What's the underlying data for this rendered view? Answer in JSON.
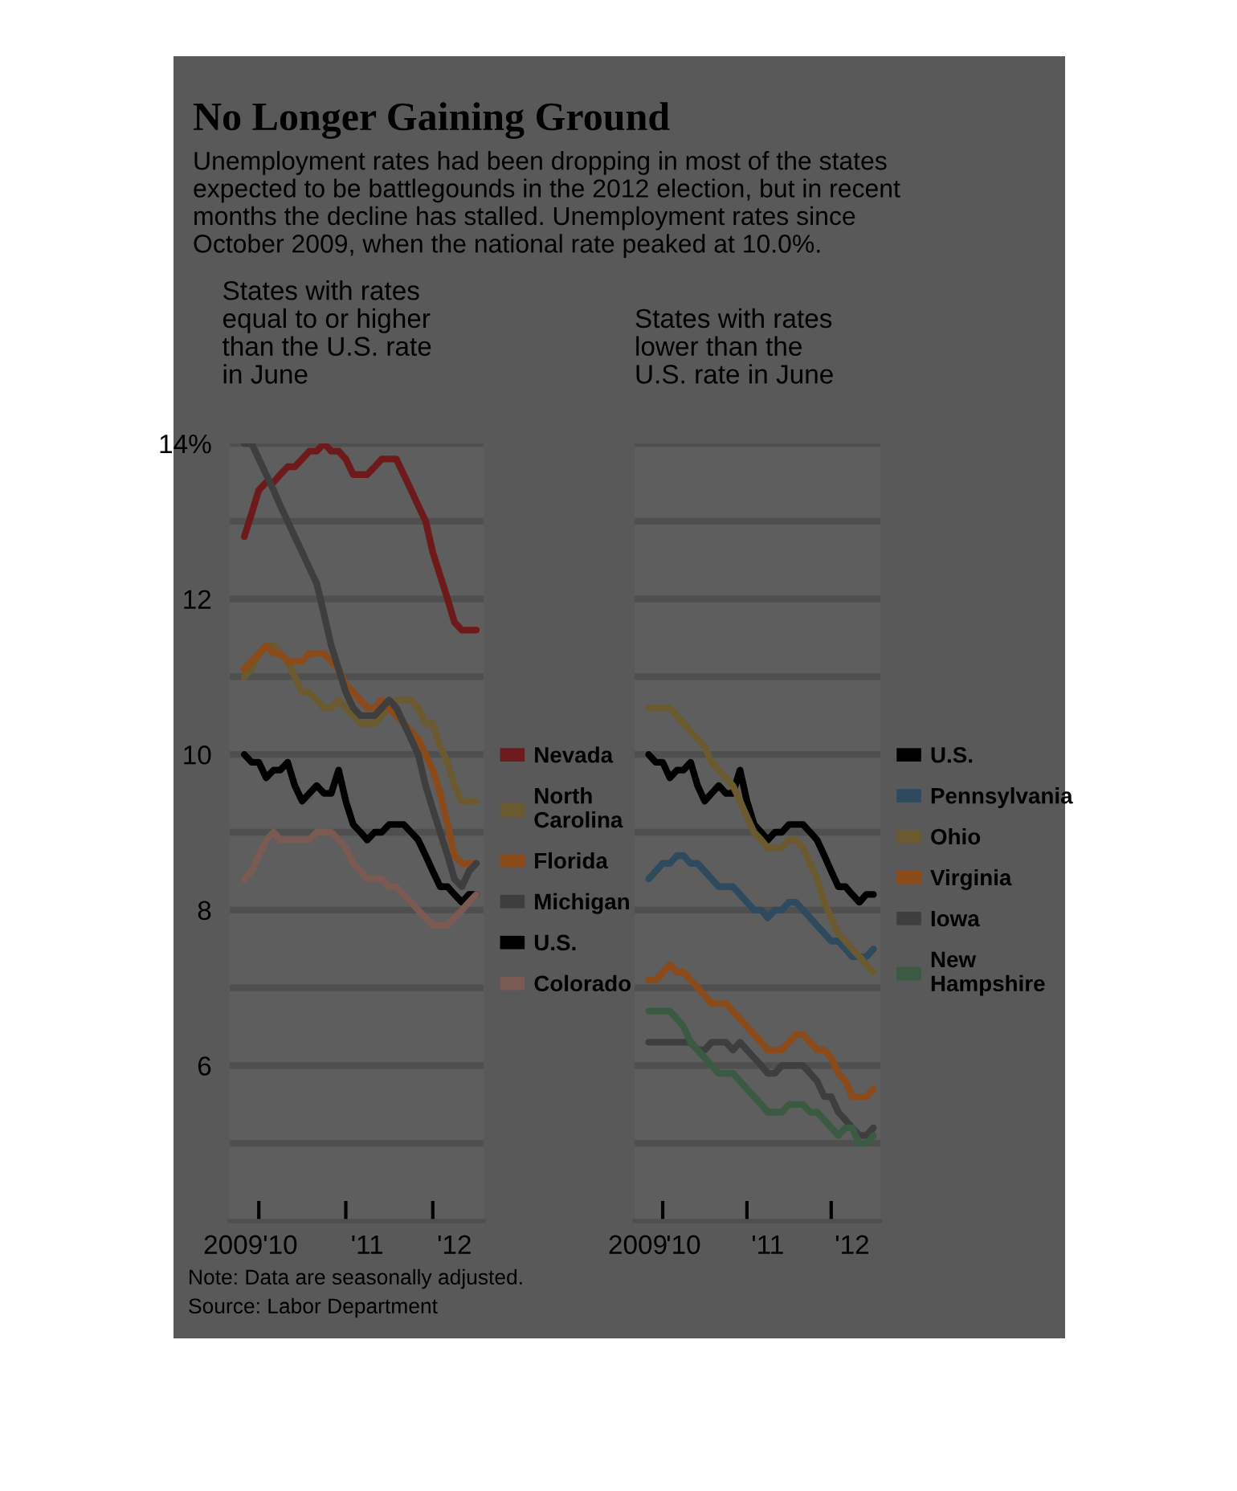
{
  "chart_data": [
    {
      "type": "line",
      "title": "States with rates\nequal to or higher\nthan the U.S. rate\nin June",
      "x": [
        "2009-10",
        "2009-11",
        "2009-12",
        "2010-01",
        "2010-02",
        "2010-03",
        "2010-04",
        "2010-05",
        "2010-06",
        "2010-07",
        "2010-08",
        "2010-09",
        "2010-10",
        "2010-11",
        "2010-12",
        "2011-01",
        "2011-02",
        "2011-03",
        "2011-04",
        "2011-05",
        "2011-06",
        "2011-07",
        "2011-08",
        "2011-09",
        "2011-10",
        "2011-11",
        "2011-12",
        "2012-01",
        "2012-02",
        "2012-03",
        "2012-04",
        "2012-05",
        "2012-06"
      ],
      "series": [
        {
          "name": "Nevada",
          "color": "#6e1a1a",
          "values": [
            12.8,
            13.1,
            13.4,
            13.5,
            13.5,
            13.6,
            13.7,
            13.7,
            13.8,
            13.9,
            13.9,
            14.0,
            13.9,
            13.9,
            13.8,
            13.6,
            13.6,
            13.6,
            13.7,
            13.8,
            13.8,
            13.8,
            13.6,
            13.4,
            13.2,
            13.0,
            12.6,
            12.3,
            12.0,
            11.7,
            11.6,
            11.6,
            11.6
          ]
        },
        {
          "name": "North\nCarolina",
          "color": "#6b5a30",
          "values": [
            11.0,
            11.1,
            11.3,
            11.4,
            11.4,
            11.3,
            11.2,
            11.0,
            10.8,
            10.8,
            10.7,
            10.6,
            10.6,
            10.7,
            10.6,
            10.5,
            10.4,
            10.4,
            10.4,
            10.5,
            10.6,
            10.7,
            10.7,
            10.7,
            10.6,
            10.4,
            10.4,
            10.1,
            9.9,
            9.6,
            9.4,
            9.4,
            9.4
          ]
        },
        {
          "name": "Florida",
          "color": "#8a4a1a",
          "values": [
            11.1,
            11.2,
            11.3,
            11.4,
            11.3,
            11.3,
            11.2,
            11.2,
            11.2,
            11.3,
            11.3,
            11.3,
            11.2,
            11.1,
            10.9,
            10.8,
            10.7,
            10.6,
            10.6,
            10.7,
            10.6,
            10.5,
            10.4,
            10.3,
            10.2,
            10.0,
            9.8,
            9.5,
            9.1,
            8.7,
            8.6,
            8.6,
            8.6
          ]
        },
        {
          "name": "Michigan",
          "color": "#3e3e3e",
          "values": [
            14.0,
            14.0,
            13.8,
            13.6,
            13.4,
            13.2,
            13.0,
            12.8,
            12.6,
            12.4,
            12.2,
            11.8,
            11.4,
            11.1,
            10.8,
            10.6,
            10.5,
            10.5,
            10.5,
            10.6,
            10.7,
            10.6,
            10.4,
            10.2,
            10.0,
            9.6,
            9.3,
            9.0,
            8.7,
            8.4,
            8.3,
            8.5,
            8.6
          ]
        },
        {
          "name": "U.S.",
          "color": "#000000",
          "values": [
            10.0,
            9.9,
            9.9,
            9.7,
            9.8,
            9.8,
            9.9,
            9.6,
            9.4,
            9.5,
            9.6,
            9.5,
            9.5,
            9.8,
            9.4,
            9.1,
            9.0,
            8.9,
            9.0,
            9.0,
            9.1,
            9.1,
            9.1,
            9.0,
            8.9,
            8.7,
            8.5,
            8.3,
            8.3,
            8.2,
            8.1,
            8.2,
            8.2
          ]
        },
        {
          "name": "Colorado",
          "color": "#7a5a52",
          "values": [
            8.4,
            8.5,
            8.7,
            8.9,
            9.0,
            8.9,
            8.9,
            8.9,
            8.9,
            8.9,
            9.0,
            9.0,
            9.0,
            8.9,
            8.8,
            8.6,
            8.5,
            8.4,
            8.4,
            8.4,
            8.3,
            8.3,
            8.2,
            8.1,
            8.0,
            7.9,
            7.8,
            7.8,
            7.8,
            7.9,
            8.0,
            8.1,
            8.2
          ]
        }
      ],
      "xlim": [
        "2009-08",
        "2012-07"
      ],
      "xticks": [
        {
          "value": "2009-08-15",
          "label": "2009"
        },
        {
          "value": "2009-12",
          "label": null
        },
        {
          "value": "2010-03",
          "label": "'10"
        },
        {
          "value": "2010-12",
          "label": null
        },
        {
          "value": "2011-03",
          "label": "'11"
        },
        {
          "value": "2011-12",
          "label": null
        },
        {
          "value": "2012-03",
          "label": "'12"
        }
      ],
      "ylim": [
        4,
        14
      ],
      "yticks": [
        {
          "value": 5,
          "label": null
        },
        6,
        {
          "value": 7,
          "label": null
        },
        8,
        {
          "value": 9,
          "label": null
        },
        10,
        {
          "value": 11,
          "label": null
        },
        12,
        {
          "value": 13,
          "label": null
        },
        {
          "value": 14,
          "label": "14%"
        }
      ],
      "grid": "y",
      "legend": "right",
      "marker": "none",
      "line_style": "solid"
    },
    {
      "type": "line",
      "title": "States with rates\nlower than the\nU.S. rate in June",
      "x": [
        "2009-10",
        "2009-11",
        "2009-12",
        "2010-01",
        "2010-02",
        "2010-03",
        "2010-04",
        "2010-05",
        "2010-06",
        "2010-07",
        "2010-08",
        "2010-09",
        "2010-10",
        "2010-11",
        "2010-12",
        "2011-01",
        "2011-02",
        "2011-03",
        "2011-04",
        "2011-05",
        "2011-06",
        "2011-07",
        "2011-08",
        "2011-09",
        "2011-10",
        "2011-11",
        "2011-12",
        "2012-01",
        "2012-02",
        "2012-03",
        "2012-04",
        "2012-05",
        "2012-06"
      ],
      "series": [
        {
          "name": "U.S.",
          "color": "#000000",
          "values": [
            10.0,
            9.9,
            9.9,
            9.7,
            9.8,
            9.8,
            9.9,
            9.6,
            9.4,
            9.5,
            9.6,
            9.5,
            9.5,
            9.8,
            9.4,
            9.1,
            9.0,
            8.9,
            9.0,
            9.0,
            9.1,
            9.1,
            9.1,
            9.0,
            8.9,
            8.7,
            8.5,
            8.3,
            8.3,
            8.2,
            8.1,
            8.2,
            8.2
          ]
        },
        {
          "name": "Pennsylvania",
          "color": "#2e4a5e",
          "values": [
            8.4,
            8.5,
            8.6,
            8.6,
            8.7,
            8.7,
            8.6,
            8.6,
            8.5,
            8.4,
            8.3,
            8.3,
            8.3,
            8.2,
            8.1,
            8.0,
            8.0,
            7.9,
            8.0,
            8.0,
            8.1,
            8.1,
            8.0,
            7.9,
            7.8,
            7.7,
            7.6,
            7.6,
            7.5,
            7.4,
            7.4,
            7.4,
            7.5
          ]
        },
        {
          "name": "Ohio",
          "color": "#6b5a30",
          "values": [
            10.6,
            10.6,
            10.6,
            10.6,
            10.5,
            10.4,
            10.3,
            10.2,
            10.1,
            9.9,
            9.8,
            9.7,
            9.6,
            9.4,
            9.2,
            9.0,
            8.9,
            8.8,
            8.8,
            8.8,
            8.9,
            8.9,
            8.8,
            8.6,
            8.4,
            8.1,
            7.9,
            7.7,
            7.6,
            7.5,
            7.4,
            7.3,
            7.2
          ]
        },
        {
          "name": "Virginia",
          "color": "#8a4a1a",
          "values": [
            7.1,
            7.1,
            7.2,
            7.3,
            7.2,
            7.2,
            7.1,
            7.0,
            6.9,
            6.8,
            6.8,
            6.8,
            6.7,
            6.6,
            6.5,
            6.4,
            6.3,
            6.2,
            6.2,
            6.2,
            6.3,
            6.4,
            6.4,
            6.3,
            6.2,
            6.2,
            6.1,
            5.9,
            5.8,
            5.6,
            5.6,
            5.6,
            5.7
          ]
        },
        {
          "name": "Iowa",
          "color": "#3e3e3e",
          "values": [
            6.3,
            6.3,
            6.3,
            6.3,
            6.3,
            6.3,
            6.3,
            6.2,
            6.2,
            6.3,
            6.3,
            6.3,
            6.2,
            6.3,
            6.2,
            6.1,
            6.0,
            5.9,
            5.9,
            6.0,
            6.0,
            6.0,
            6.0,
            5.9,
            5.8,
            5.6,
            5.6,
            5.4,
            5.3,
            5.2,
            5.1,
            5.1,
            5.2
          ]
        },
        {
          "name": "New\nHampshire",
          "color": "#3a5a42",
          "values": [
            6.7,
            6.7,
            6.7,
            6.7,
            6.6,
            6.5,
            6.3,
            6.2,
            6.1,
            6.0,
            5.9,
            5.9,
            5.9,
            5.8,
            5.7,
            5.6,
            5.5,
            5.4,
            5.4,
            5.4,
            5.5,
            5.5,
            5.5,
            5.4,
            5.4,
            5.3,
            5.2,
            5.1,
            5.2,
            5.2,
            5.0,
            5.0,
            5.1
          ]
        }
      ],
      "xlim": [
        "2009-08",
        "2012-07"
      ],
      "xticks": [
        {
          "value": "2009-08-15",
          "label": "2009"
        },
        {
          "value": "2009-12",
          "label": null
        },
        {
          "value": "2010-03",
          "label": "'10"
        },
        {
          "value": "2010-12",
          "label": null
        },
        {
          "value": "2011-03",
          "label": "'11"
        },
        {
          "value": "2011-12",
          "label": null
        },
        {
          "value": "2012-03",
          "label": "'12"
        }
      ],
      "ylim": [
        4,
        14
      ],
      "yticks": [
        {
          "value": 5,
          "label": null
        },
        {
          "value": 6,
          "label": null
        },
        {
          "value": 7,
          "label": null
        },
        {
          "value": 8,
          "label": null
        },
        {
          "value": 9,
          "label": null
        },
        {
          "value": 10,
          "label": null
        },
        {
          "value": 11,
          "label": null
        },
        {
          "value": 12,
          "label": null
        },
        {
          "value": 13,
          "label": null
        },
        {
          "value": 14,
          "label": null
        }
      ],
      "tick_labels": "x",
      "grid": "y",
      "legend": "right",
      "marker": "none",
      "line_style": "solid",
      "annotations": [
        "No Longer Gaining Ground",
        "Unemployment rates had been dropping in most of the states\nexpected to be battlegounds in the 2012 election, but in recent\nmonths the decline has stalled. Unemployment rates since\nOctober 2009, when the national rate peaked at 10.0%.",
        "Note: Data are seasonally adjusted.",
        "Source: Labor Department"
      ]
    }
  ]
}
